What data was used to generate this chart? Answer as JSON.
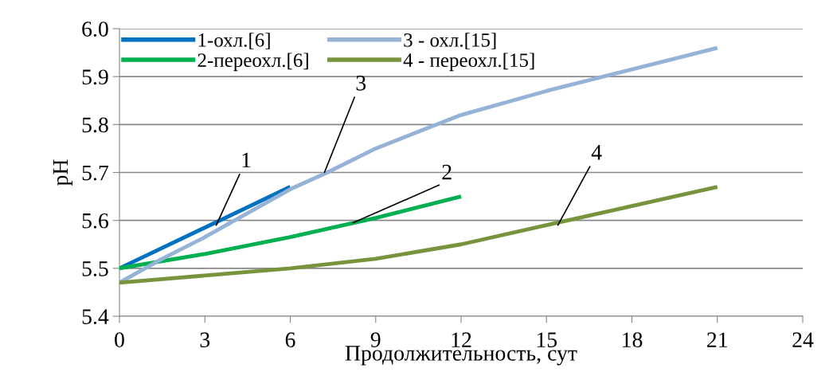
{
  "chart_data": {
    "type": "line",
    "xlabel": "Продолжительность, сут",
    "ylabel": "pH",
    "xlim": [
      0,
      24
    ],
    "xticks": [
      0,
      3,
      6,
      9,
      12,
      15,
      18,
      21,
      24
    ],
    "ylim": [
      5.4,
      6.0
    ],
    "yticks": [
      {
        "value": 5.4,
        "label": "5.4"
      },
      {
        "value": 5.5,
        "label": "5.5"
      },
      {
        "value": 5.6,
        "label": "5.6"
      },
      {
        "value": 5.7,
        "label": "5.7"
      },
      {
        "value": 5.8,
        "label": "5.8"
      },
      {
        "value": 5.9,
        "label": "5.9"
      },
      {
        "value": 6.0,
        "label": "6.0"
      }
    ],
    "grid": "y",
    "legend": "top left",
    "marker": "none",
    "line_style": "solid",
    "series": [
      {
        "name": "1-охл.[6]",
        "color": "#0070c0",
        "x": [
          0,
          3,
          6
        ],
        "values": [
          5.5,
          5.585,
          5.67
        ]
      },
      {
        "name": "2-переохл.[6]",
        "color": "#00b050",
        "x": [
          0,
          3,
          6,
          9,
          12
        ],
        "values": [
          5.5,
          5.53,
          5.565,
          5.605,
          5.65
        ]
      },
      {
        "name": "3 - охл.[15]",
        "color": "#95b3d7",
        "x": [
          0,
          1.5,
          3,
          6,
          7.3,
          9,
          12,
          15,
          18,
          21
        ],
        "values": [
          5.47,
          5.52,
          5.565,
          5.665,
          5.7,
          5.75,
          5.82,
          5.87,
          5.915,
          5.96
        ]
      },
      {
        "name": "4 - переохл.[15]",
        "color": "#77933c",
        "x": [
          0,
          3,
          6,
          9,
          12,
          15,
          18,
          21
        ],
        "values": [
          5.47,
          5.485,
          5.5,
          5.52,
          5.55,
          5.59,
          5.63,
          5.67
        ]
      }
    ],
    "annotations": [
      {
        "text": "1",
        "x": 3.4,
        "y": 5.59
      },
      {
        "text": "2",
        "x": 8.2,
        "y": 5.595
      },
      {
        "text": "3",
        "x": 7.2,
        "y": 5.7
      },
      {
        "text": "4",
        "x": 15.4,
        "y": 5.59
      }
    ]
  }
}
